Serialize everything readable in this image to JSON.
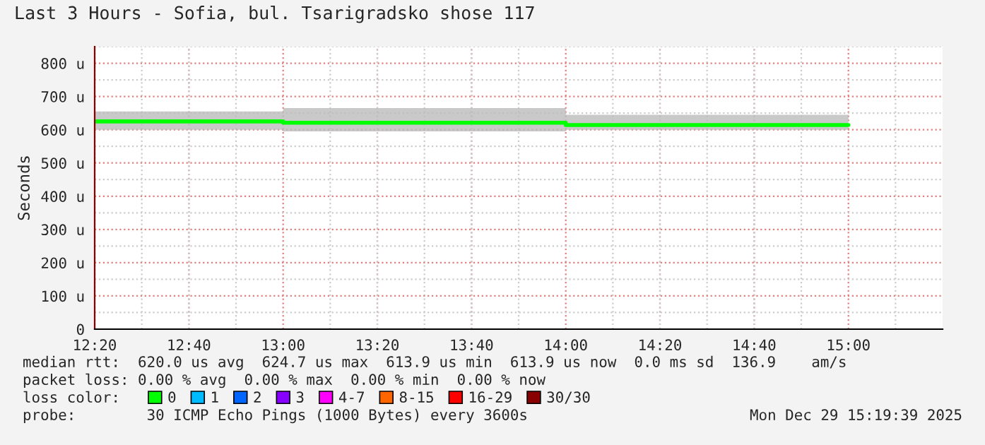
{
  "chart_data": {
    "type": "step",
    "title": "Last 3 Hours - Sofia, bul. Tsarigradsko shose 117",
    "ylabel": "Seconds",
    "legend_title": "loss color:",
    "legend": "bottom",
    "grid": true,
    "x": [
      12.3333,
      13,
      14,
      15
    ],
    "series": [
      {
        "name": "0",
        "color": "#00ff00",
        "values": [
          625,
          621,
          614,
          614
        ],
        "lower": [
          600,
          595,
          600,
          600
        ],
        "upper": [
          655,
          665,
          645,
          645
        ]
      },
      {
        "name": "1",
        "color": "#00bbff",
        "values": [
          null,
          null,
          null,
          null
        ]
      },
      {
        "name": "2",
        "color": "#0066ff",
        "values": [
          null,
          null,
          null,
          null
        ]
      },
      {
        "name": "3",
        "color": "#8800ff",
        "values": [
          null,
          null,
          null,
          null
        ]
      },
      {
        "name": "4-7",
        "color": "#ff00ff",
        "values": [
          null,
          null,
          null,
          null
        ]
      },
      {
        "name": "8-15",
        "color": "#ff6600",
        "values": [
          null,
          null,
          null,
          null
        ]
      },
      {
        "name": "16-29",
        "color": "#ff0000",
        "values": [
          null,
          null,
          null,
          null
        ]
      },
      {
        "name": "30/30",
        "color": "#880000",
        "values": [
          null,
          null,
          null,
          null
        ]
      }
    ],
    "xlim": [
      12.3333,
      15.3333
    ],
    "xticks": [
      {
        "value": 12.3333,
        "label": "12:20"
      },
      {
        "value": 12.6667,
        "label": "12:40"
      },
      {
        "value": 13,
        "label": "13:00"
      },
      {
        "value": 13.3333,
        "label": "13:20"
      },
      {
        "value": 13.6667,
        "label": "13:40"
      },
      {
        "value": 14,
        "label": "14:00"
      },
      {
        "value": 14.3333,
        "label": "14:20"
      },
      {
        "value": 14.6667,
        "label": "14:40"
      },
      {
        "value": 15,
        "label": "15:00"
      }
    ],
    "ylim": [
      0,
      850
    ],
    "yticks": [
      0,
      {
        "value": 100,
        "label": "100 u"
      },
      {
        "value": 200,
        "label": "200 u"
      },
      {
        "value": 300,
        "label": "300 u"
      },
      {
        "value": 400,
        "label": "400 u"
      },
      {
        "value": 500,
        "label": "500 u"
      },
      {
        "value": 600,
        "label": "600 u"
      },
      {
        "value": 700,
        "label": "700 u"
      },
      {
        "value": 800,
        "label": "800 u"
      }
    ],
    "annotations": [
      "median rtt:  620.0 us avg  624.7 us max  613.9 us min  613.9 us now  0.0 ms sd  136.9    am/s",
      "packet loss: 0.00 % avg  0.00 % max  0.00 % min  0.00 % now",
      "probe:        30 ICMP Echo Pings (1000 Bytes) every 3600s",
      "Mon Dec 29 15:19:39 2025"
    ]
  }
}
